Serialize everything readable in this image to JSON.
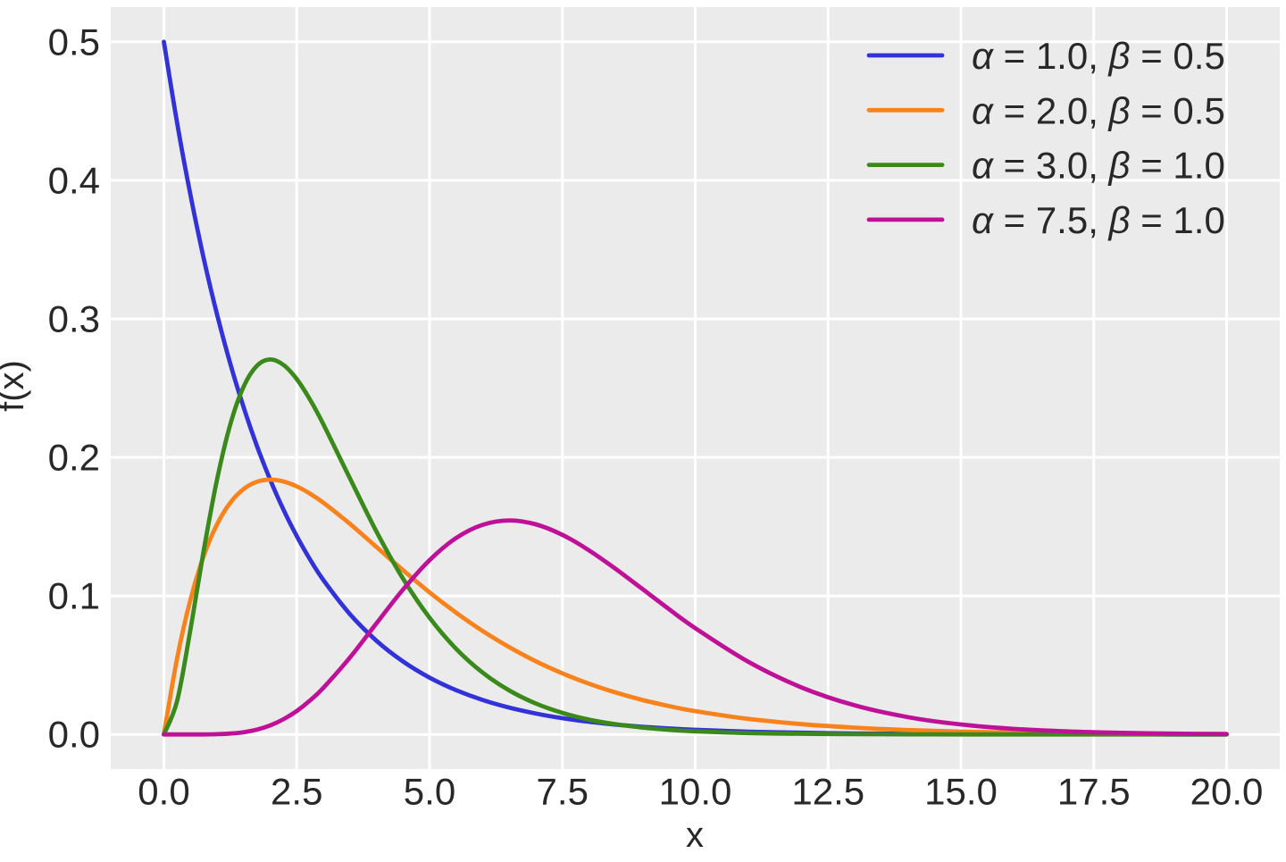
{
  "figure": {
    "background": "#ffffff",
    "plot_background": "#ebebeb",
    "grid_color": "#ffffff",
    "text_color": "#282828"
  },
  "chart_data": {
    "type": "line",
    "title": "",
    "xlabel": "x",
    "ylabel": "f(x)",
    "xlim": [
      -1,
      21
    ],
    "ylim": [
      -0.025,
      0.525
    ],
    "grid": true,
    "legend_position": "upper right",
    "xticks": {
      "values": [
        0,
        2.5,
        5,
        7.5,
        10,
        12.5,
        15,
        17.5,
        20
      ],
      "labels": [
        "0.0",
        "2.5",
        "5.0",
        "7.5",
        "10.0",
        "12.5",
        "15.0",
        "17.5",
        "20.0"
      ]
    },
    "yticks": {
      "values": [
        0,
        0.1,
        0.2,
        0.3,
        0.4,
        0.5
      ],
      "labels": [
        "0.0",
        "0.1",
        "0.2",
        "0.3",
        "0.4",
        "0.5"
      ]
    },
    "x": [
      0,
      0.25,
      0.5,
      0.75,
      1,
      1.25,
      1.5,
      1.75,
      2,
      2.25,
      2.5,
      2.75,
      3,
      3.5,
      4,
      4.5,
      5,
      5.5,
      6,
      6.5,
      7,
      7.5,
      8,
      8.5,
      9,
      9.5,
      10,
      11,
      12,
      13,
      14,
      15,
      16,
      17,
      18,
      19,
      20
    ],
    "series": [
      {
        "name": "α = 1.0, β = 0.5",
        "alpha": 1.0,
        "beta": 0.5,
        "color": "#3232d8",
        "values": [
          0.5,
          0.44125,
          0.3894,
          0.34365,
          0.30327,
          0.26763,
          0.23618,
          0.20843,
          0.18394,
          0.16232,
          0.14325,
          0.12642,
          0.11157,
          0.08688,
          0.06767,
          0.0527,
          0.04104,
          0.03196,
          0.02489,
          0.01939,
          0.0151,
          0.01176,
          0.00916,
          0.00713,
          0.00555,
          0.00433,
          0.00337,
          0.00204,
          0.00124,
          0.00075,
          0.00046,
          0.00028,
          0.00017,
          0.0001,
          6e-05,
          4e-05,
          2e-05
        ]
      },
      {
        "name": "α = 2.0, β = 0.5",
        "alpha": 2.0,
        "beta": 0.5,
        "color": "#f8821c",
        "values": [
          0,
          0.05516,
          0.09735,
          0.12887,
          0.15163,
          0.16727,
          0.17714,
          0.18238,
          0.18394,
          0.18262,
          0.17906,
          0.17383,
          0.16735,
          0.15205,
          0.13534,
          0.11858,
          0.10261,
          0.0879,
          0.07468,
          0.06301,
          0.05284,
          0.0441,
          0.03663,
          0.03031,
          0.025,
          0.02055,
          0.01684,
          0.01124,
          0.00744,
          0.00489,
          0.00319,
          0.00207,
          0.00134,
          0.00086,
          0.00056,
          0.00036,
          0.00023
        ]
      },
      {
        "name": "α = 3.0, β = 1.0",
        "alpha": 3.0,
        "beta": 1.0,
        "color": "#3a8a1b",
        "values": [
          0,
          0.02434,
          0.07582,
          0.13285,
          0.18394,
          0.22383,
          0.25102,
          0.26608,
          0.27067,
          0.26679,
          0.25652,
          0.24173,
          0.22404,
          0.18496,
          0.14653,
          0.11248,
          0.08422,
          0.06181,
          0.04462,
          0.03176,
          0.02234,
          0.01556,
          0.01073,
          0.00735,
          0.005,
          0.00338,
          0.00227,
          0.00101,
          0.00044,
          0.00019,
          8e-05,
          3e-05,
          1e-05,
          1e-05,
          0,
          0,
          0
        ]
      },
      {
        "name": "α = 7.5, β = 1.0",
        "alpha": 7.5,
        "beta": 1.0,
        "color": "#bf1197",
        "values": [
          0,
          0,
          0,
          4e-05,
          0.0002,
          0.00065,
          0.00166,
          0.00353,
          0.00655,
          0.01096,
          0.01694,
          0.02451,
          0.0336,
          0.0555,
          0.08018,
          0.10457,
          0.12581,
          0.14179,
          0.15138,
          0.15449,
          0.15168,
          0.14407,
          0.13292,
          0.11957,
          0.10515,
          0.09063,
          0.07672,
          0.05244,
          0.03396,
          0.02102,
          0.01252,
          0.00721,
          0.00404,
          0.0022,
          0.00117,
          0.00061,
          0.00032
        ]
      }
    ]
  }
}
